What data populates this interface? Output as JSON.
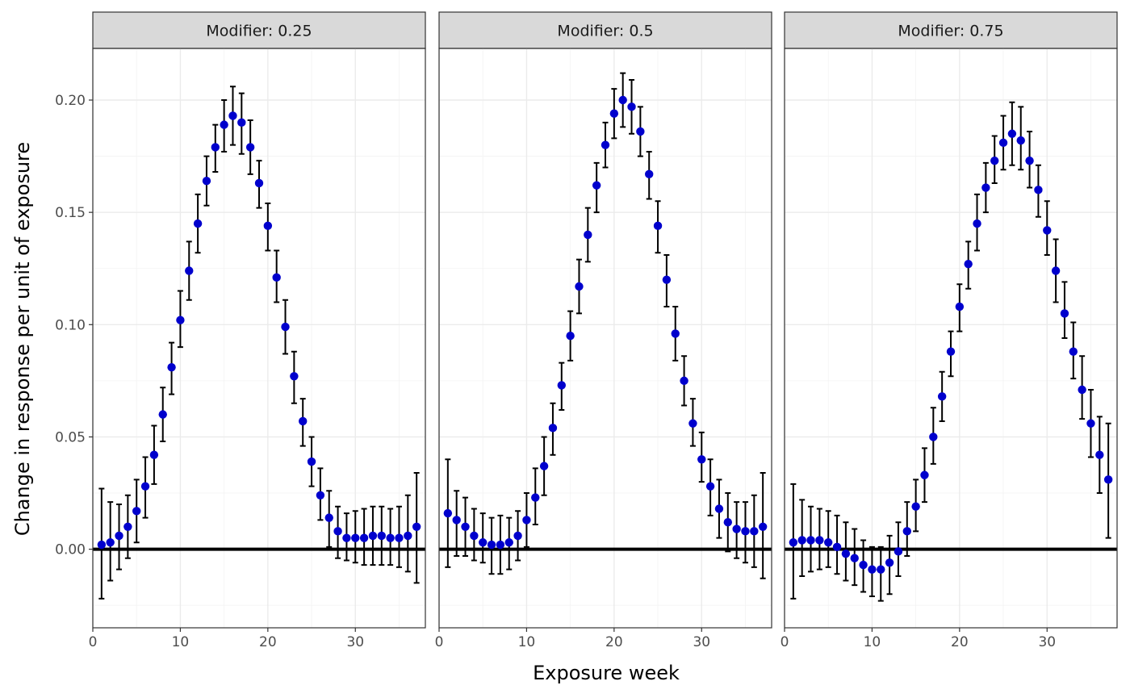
{
  "chart_data": {
    "type": "scatter",
    "xlabel": "Exposure week",
    "ylabel": "Change in response per unit of exposure",
    "xlim": [
      0,
      38
    ],
    "ylim": [
      -0.035,
      0.223
    ],
    "xticks": [
      0,
      10,
      20,
      30
    ],
    "yticks": [
      0.0,
      0.05,
      0.1,
      0.15,
      0.2
    ],
    "ytick_labels": [
      "0.00",
      "0.05",
      "0.10",
      "0.15",
      "0.20"
    ],
    "hline": 0,
    "point_color": "#0000cd",
    "errorbar_color": "#000000",
    "grid": true,
    "panels": [
      {
        "strip": "Modifier: 0.25",
        "x": [
          1,
          2,
          3,
          4,
          5,
          6,
          7,
          8,
          9,
          10,
          11,
          12,
          13,
          14,
          15,
          16,
          17,
          18,
          19,
          20,
          21,
          22,
          23,
          24,
          25,
          26,
          27,
          28,
          29,
          30,
          31,
          32,
          33,
          34,
          35,
          36,
          37
        ],
        "y": [
          0.002,
          0.003,
          0.006,
          0.01,
          0.017,
          0.028,
          0.042,
          0.06,
          0.081,
          0.102,
          0.124,
          0.145,
          0.164,
          0.179,
          0.189,
          0.193,
          0.19,
          0.179,
          0.163,
          0.144,
          0.121,
          0.099,
          0.077,
          0.057,
          0.039,
          0.024,
          0.014,
          0.008,
          0.005,
          0.005,
          0.005,
          0.006,
          0.006,
          0.005,
          0.005,
          0.006,
          0.01
        ],
        "ymin": [
          -0.022,
          -0.014,
          -0.009,
          -0.004,
          0.003,
          0.014,
          0.029,
          0.048,
          0.069,
          0.09,
          0.111,
          0.132,
          0.153,
          0.168,
          0.177,
          0.18,
          0.176,
          0.167,
          0.152,
          0.133,
          0.11,
          0.087,
          0.065,
          0.046,
          0.028,
          0.013,
          0.001,
          -0.004,
          -0.005,
          -0.006,
          -0.007,
          -0.007,
          -0.007,
          -0.007,
          -0.008,
          -0.01,
          -0.015
        ],
        "ymax": [
          0.027,
          0.021,
          0.02,
          0.024,
          0.031,
          0.041,
          0.055,
          0.072,
          0.092,
          0.115,
          0.137,
          0.158,
          0.175,
          0.189,
          0.2,
          0.206,
          0.203,
          0.191,
          0.173,
          0.154,
          0.133,
          0.111,
          0.088,
          0.067,
          0.05,
          0.036,
          0.026,
          0.019,
          0.016,
          0.017,
          0.018,
          0.019,
          0.019,
          0.018,
          0.019,
          0.024,
          0.034
        ]
      },
      {
        "strip": "Modifier: 0.5",
        "x": [
          1,
          2,
          3,
          4,
          5,
          6,
          7,
          8,
          9,
          10,
          11,
          12,
          13,
          14,
          15,
          16,
          17,
          18,
          19,
          20,
          21,
          22,
          23,
          24,
          25,
          26,
          27,
          28,
          29,
          30,
          31,
          32,
          33,
          34,
          35,
          36,
          37
        ],
        "y": [
          0.016,
          0.013,
          0.01,
          0.006,
          0.003,
          0.002,
          0.002,
          0.003,
          0.006,
          0.013,
          0.023,
          0.037,
          0.054,
          0.073,
          0.095,
          0.117,
          0.14,
          0.162,
          0.18,
          0.194,
          0.2,
          0.197,
          0.186,
          0.167,
          0.144,
          0.12,
          0.096,
          0.075,
          0.056,
          0.04,
          0.028,
          0.018,
          0.012,
          0.009,
          0.008,
          0.008,
          0.01
        ],
        "ymin": [
          -0.008,
          -0.003,
          -0.003,
          -0.005,
          -0.006,
          -0.011,
          -0.011,
          -0.009,
          -0.005,
          0.001,
          0.011,
          0.024,
          0.042,
          0.062,
          0.084,
          0.105,
          0.128,
          0.15,
          0.17,
          0.183,
          0.188,
          0.185,
          0.175,
          0.156,
          0.132,
          0.108,
          0.084,
          0.064,
          0.046,
          0.03,
          0.015,
          0.005,
          -0.001,
          -0.004,
          -0.006,
          -0.008,
          -0.013
        ],
        "ymax": [
          0.04,
          0.026,
          0.023,
          0.018,
          0.016,
          0.014,
          0.015,
          0.014,
          0.017,
          0.025,
          0.036,
          0.05,
          0.065,
          0.083,
          0.106,
          0.129,
          0.152,
          0.172,
          0.19,
          0.205,
          0.212,
          0.209,
          0.197,
          0.177,
          0.155,
          0.131,
          0.108,
          0.086,
          0.067,
          0.052,
          0.04,
          0.031,
          0.025,
          0.021,
          0.021,
          0.024,
          0.034
        ]
      },
      {
        "strip": "Modifier: 0.75",
        "x": [
          1,
          2,
          3,
          4,
          5,
          6,
          7,
          8,
          9,
          10,
          11,
          12,
          13,
          14,
          15,
          16,
          17,
          18,
          19,
          20,
          21,
          22,
          23,
          24,
          25,
          26,
          27,
          28,
          29,
          30,
          31,
          32,
          33,
          34,
          35,
          36,
          37
        ],
        "y": [
          0.003,
          0.004,
          0.004,
          0.004,
          0.003,
          0.001,
          -0.002,
          -0.004,
          -0.007,
          -0.009,
          -0.009,
          -0.006,
          -0.001,
          0.008,
          0.019,
          0.033,
          0.05,
          0.068,
          0.088,
          0.108,
          0.127,
          0.145,
          0.161,
          0.173,
          0.181,
          0.185,
          0.182,
          0.173,
          0.16,
          0.142,
          0.124,
          0.105,
          0.088,
          0.071,
          0.056,
          0.042,
          0.031
        ],
        "ymin": [
          -0.022,
          -0.012,
          -0.01,
          -0.009,
          -0.008,
          -0.011,
          -0.014,
          -0.016,
          -0.019,
          -0.021,
          -0.023,
          -0.02,
          -0.012,
          -0.003,
          0.008,
          0.021,
          0.038,
          0.057,
          0.077,
          0.097,
          0.116,
          0.133,
          0.15,
          0.163,
          0.169,
          0.171,
          0.169,
          0.161,
          0.148,
          0.131,
          0.11,
          0.094,
          0.076,
          0.058,
          0.041,
          0.025,
          0.005
        ],
        "ymax": [
          0.029,
          0.022,
          0.019,
          0.018,
          0.017,
          0.015,
          0.012,
          0.009,
          0.004,
          0.001,
          0.001,
          0.006,
          0.012,
          0.021,
          0.031,
          0.045,
          0.063,
          0.079,
          0.097,
          0.118,
          0.137,
          0.158,
          0.172,
          0.184,
          0.193,
          0.199,
          0.197,
          0.186,
          0.171,
          0.155,
          0.138,
          0.119,
          0.101,
          0.086,
          0.071,
          0.059,
          0.056
        ]
      }
    ]
  }
}
